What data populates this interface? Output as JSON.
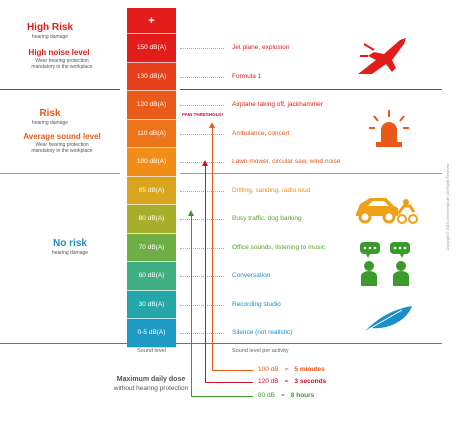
{
  "zones": {
    "high": {
      "title": "High Risk",
      "title_sub": "hearing damage",
      "subtitle": "High noise level",
      "subtitle_desc": "Wear hearing protection mandatory in the workplace",
      "color": "#e31d1a"
    },
    "medium": {
      "title": "Risk",
      "title_sub": "hearing damage",
      "subtitle": "Average sound level",
      "subtitle_desc": "Wear hearing protection mandatory in the workplace",
      "color": "#e8591a"
    },
    "low": {
      "title": "No risk",
      "title_sub": "hearing damage",
      "color": "#1a8fc9"
    }
  },
  "bar": {
    "plus": "+",
    "levels": [
      {
        "label": "150 dB(A)",
        "color": "#e31d1a"
      },
      {
        "label": "130 dB(A)",
        "color": "#e8401a"
      },
      {
        "label": "120 dB(A)",
        "color": "#ea5a19"
      },
      {
        "label": "110 dB(A)",
        "color": "#ed7418"
      },
      {
        "label": "100 dB(A)",
        "color": "#f08e18"
      },
      {
        "label": "85 dB(A)",
        "color": "#d9a51f"
      },
      {
        "label": "80 dB(A)",
        "color": "#a9ad2c"
      },
      {
        "label": "70 dB(A)",
        "color": "#6eae45"
      },
      {
        "label": "60 dB(A)",
        "color": "#3fae83"
      },
      {
        "label": "30 dB(A)",
        "color": "#25a6a8"
      },
      {
        "label": "0-5 dB(A)",
        "color": "#1e9bc4"
      }
    ]
  },
  "activities": [
    {
      "label": "Jet plane, explosion",
      "color": "#e31d1a"
    },
    {
      "label": "Formula 1",
      "color": "#e31d1a"
    },
    {
      "label": "Airplane taking off, jackhammer",
      "color": "#e31d1a"
    },
    {
      "label": "Ambulance, concert",
      "color": "#e8591a"
    },
    {
      "label": "Lawn mower, circular saw, wind noise",
      "color": "#e8591a"
    },
    {
      "label": "Drilling, sanding, radio loud",
      "color": "#f08e18"
    },
    {
      "label": "Busy traffic, dog barking",
      "color": "#5aa02c"
    },
    {
      "label": "Office sounds, listening to music",
      "color": "#5aa02c"
    },
    {
      "label": "Conversation",
      "color": "#1a8fc9"
    },
    {
      "label": "Recording studio",
      "color": "#1a8fc9"
    },
    {
      "label": "Silence (not realistic)",
      "color": "#1a8fc9"
    }
  ],
  "pain_threshold": "PAIN THRESHOLD!",
  "axis": {
    "left_label": "Sound level",
    "right_label": "Sound level per activity"
  },
  "dose": {
    "title": "Maximum daily dose",
    "subtitle": "without hearing protection",
    "rows": [
      {
        "db": "120 dB",
        "eq": "=",
        "time": "3 seconds",
        "color": "#c8102e"
      },
      {
        "db": "100 dB",
        "eq": "=",
        "time": "5 minutes",
        "color": "#e8591a"
      },
      {
        "db": "80 dB",
        "eq": "=",
        "time": "8 hours",
        "color": "#3a9a2a"
      }
    ]
  },
  "icons": [
    "fighter-jet-icon",
    "siren-icon",
    "car-motorcycle-icon",
    "people-talking-icon",
    "feather-icon"
  ],
  "copyright": "Copyright © 2023 Ohrenschutz.de | All Rights Reserved"
}
